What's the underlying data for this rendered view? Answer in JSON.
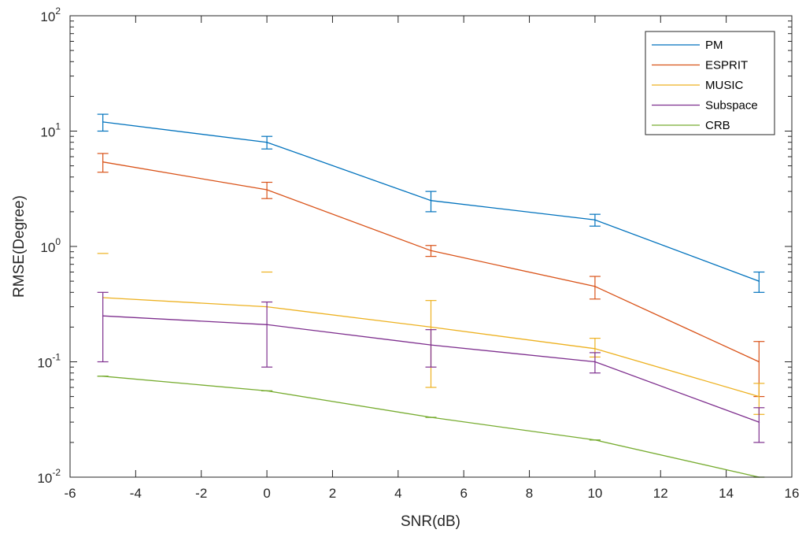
{
  "chart_data": {
    "type": "line",
    "xlabel": "SNR(dB)",
    "ylabel": "RMSE(Degree)",
    "xlim": [
      -6,
      16
    ],
    "ylim": [
      0.01,
      100
    ],
    "yscale": "log",
    "x_ticks": [
      -6,
      -4,
      -2,
      0,
      2,
      4,
      6,
      8,
      10,
      12,
      14,
      16
    ],
    "x_tick_labels": [
      "-6",
      "-4",
      "-2",
      "0",
      "2",
      "4",
      "6",
      "8",
      "10",
      "12",
      "14",
      "16"
    ],
    "y_ticks": [
      0.01,
      0.1,
      1,
      10,
      100
    ],
    "y_tick_labels": [
      {
        "base": "10",
        "exp": "-2"
      },
      {
        "base": "10",
        "exp": "-1"
      },
      {
        "base": "10",
        "exp": "0"
      },
      {
        "base": "10",
        "exp": "1"
      },
      {
        "base": "10",
        "exp": "2"
      }
    ],
    "grid": false,
    "legend_position": "top-right",
    "x": [
      -5,
      0,
      5,
      10,
      15
    ],
    "series": [
      {
        "name": "PM",
        "color": "#0072BD",
        "values": [
          12,
          8,
          2.5,
          1.7,
          0.5
        ],
        "err_low": [
          10,
          7,
          2.0,
          1.5,
          0.4
        ],
        "err_high": [
          14,
          9,
          3.0,
          1.9,
          0.6
        ]
      },
      {
        "name": "ESPRIT",
        "color": "#D95319",
        "values": [
          5.4,
          3.1,
          0.92,
          0.45,
          0.1
        ],
        "err_low": [
          4.4,
          2.6,
          0.82,
          0.35,
          0.05
        ],
        "err_high": [
          6.4,
          3.6,
          1.02,
          0.55,
          0.15
        ]
      },
      {
        "name": "MUSIC",
        "color": "#EDB120",
        "values": [
          0.36,
          0.3,
          0.2,
          0.13,
          0.05
        ],
        "err_low": [
          null,
          null,
          0.06,
          0.11,
          0.035
        ],
        "err_high": [
          0.87,
          0.6,
          0.34,
          0.16,
          0.065
        ]
      },
      {
        "name": "Subspace",
        "color": "#7E2F8E",
        "values": [
          0.25,
          0.21,
          0.14,
          0.1,
          0.03
        ],
        "err_low": [
          0.1,
          0.09,
          0.09,
          0.08,
          0.02
        ],
        "err_high": [
          0.4,
          0.33,
          0.19,
          0.12,
          0.04
        ]
      },
      {
        "name": "CRB",
        "color": "#77AC30",
        "values": [
          0.075,
          0.056,
          0.033,
          0.021,
          0.01
        ],
        "err_low": [
          0.075,
          0.056,
          0.033,
          0.021,
          0.01
        ],
        "err_high": [
          0.075,
          0.056,
          0.033,
          0.021,
          0.01
        ]
      }
    ]
  }
}
